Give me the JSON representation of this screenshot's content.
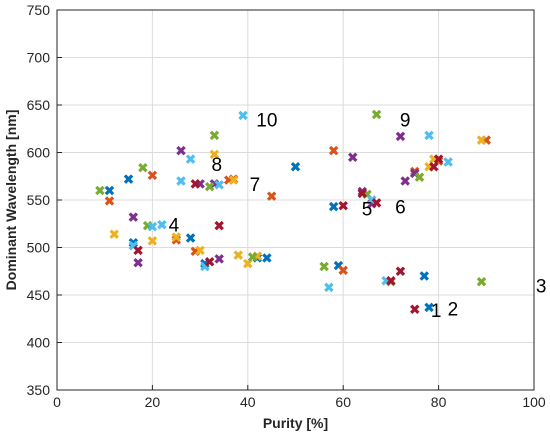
{
  "chart_data": {
    "type": "scatter",
    "title": "",
    "xlabel": "Purity [%]",
    "ylabel": "Dominant Wavelength [nm]",
    "xlim": [
      0,
      100
    ],
    "ylim": [
      350,
      750
    ],
    "xticks": [
      0,
      20,
      40,
      60,
      80,
      100
    ],
    "yticks": [
      350,
      400,
      450,
      500,
      550,
      600,
      650,
      700,
      750
    ],
    "grid": true,
    "marker": "x",
    "annotations": [
      {
        "text": "1",
        "x": 79.5,
        "y": 434
      },
      {
        "text": "2",
        "x": 83.0,
        "y": 436
      },
      {
        "text": "3",
        "x": 101.5,
        "y": 460
      },
      {
        "text": "4",
        "x": 24.5,
        "y": 524
      },
      {
        "text": "5",
        "x": 65.0,
        "y": 541
      },
      {
        "text": "6",
        "x": 72.0,
        "y": 543
      },
      {
        "text": "7",
        "x": 41.5,
        "y": 567
      },
      {
        "text": "8",
        "x": 33.5,
        "y": 588
      },
      {
        "text": "9",
        "x": 73.0,
        "y": 635
      },
      {
        "text": "10",
        "x": 44.0,
        "y": 635
      }
    ],
    "series": [
      {
        "color": "#0072BD",
        "points": [
          [
            11,
            560
          ],
          [
            15,
            572
          ],
          [
            16,
            505
          ],
          [
            28,
            510
          ],
          [
            31,
            483
          ],
          [
            42,
            489
          ],
          [
            44,
            489
          ],
          [
            50,
            585
          ],
          [
            58,
            543
          ],
          [
            59,
            481
          ],
          [
            77,
            470
          ],
          [
            78,
            437
          ]
        ]
      },
      {
        "color": "#D95319",
        "points": [
          [
            11,
            549
          ],
          [
            20,
            576
          ],
          [
            25,
            508
          ],
          [
            29,
            496
          ],
          [
            36,
            571
          ],
          [
            37,
            572
          ],
          [
            45,
            554
          ],
          [
            58,
            602
          ],
          [
            60,
            476
          ],
          [
            75,
            580
          ],
          [
            80,
            591
          ],
          [
            90,
            613
          ]
        ]
      },
      {
        "color": "#EDB120",
        "points": [
          [
            12,
            514
          ],
          [
            20,
            507
          ],
          [
            25,
            511
          ],
          [
            30,
            497
          ],
          [
            33,
            598
          ],
          [
            37,
            571
          ],
          [
            38,
            492
          ],
          [
            40,
            483
          ],
          [
            42,
            491
          ],
          [
            78,
            585
          ],
          [
            79,
            593
          ],
          [
            89,
            613
          ]
        ]
      },
      {
        "color": "#7E2F8E",
        "points": [
          [
            16,
            532
          ],
          [
            17,
            484
          ],
          [
            26,
            602
          ],
          [
            30,
            567
          ],
          [
            33,
            567
          ],
          [
            34,
            488
          ],
          [
            62,
            595
          ],
          [
            64,
            559
          ],
          [
            66,
            546
          ],
          [
            72,
            617
          ],
          [
            73,
            570
          ],
          [
            75,
            578
          ]
        ]
      },
      {
        "color": "#77AC30",
        "points": [
          [
            9,
            560
          ],
          [
            18,
            584
          ],
          [
            19,
            523
          ],
          [
            33,
            618
          ],
          [
            32,
            564
          ],
          [
            41,
            490
          ],
          [
            56,
            480
          ],
          [
            65,
            556
          ],
          [
            67,
            640
          ],
          [
            70,
            464
          ],
          [
            76,
            574
          ],
          [
            89,
            464
          ]
        ]
      },
      {
        "color": "#4DBEEE",
        "points": [
          [
            16,
            502
          ],
          [
            20,
            522
          ],
          [
            22,
            524
          ],
          [
            26,
            570
          ],
          [
            28,
            593
          ],
          [
            31,
            480
          ],
          [
            34,
            566
          ],
          [
            39,
            639
          ],
          [
            57,
            458
          ],
          [
            66,
            550
          ],
          [
            69,
            465
          ],
          [
            78,
            618
          ],
          [
            82,
            590
          ]
        ]
      },
      {
        "color": "#A2142F",
        "points": [
          [
            17,
            497
          ],
          [
            29,
            567
          ],
          [
            32,
            485
          ],
          [
            34,
            523
          ],
          [
            60,
            544
          ],
          [
            64,
            557
          ],
          [
            67,
            547
          ],
          [
            70,
            465
          ],
          [
            72,
            475
          ],
          [
            75,
            435
          ],
          [
            79,
            585
          ],
          [
            80,
            593
          ]
        ]
      }
    ]
  }
}
